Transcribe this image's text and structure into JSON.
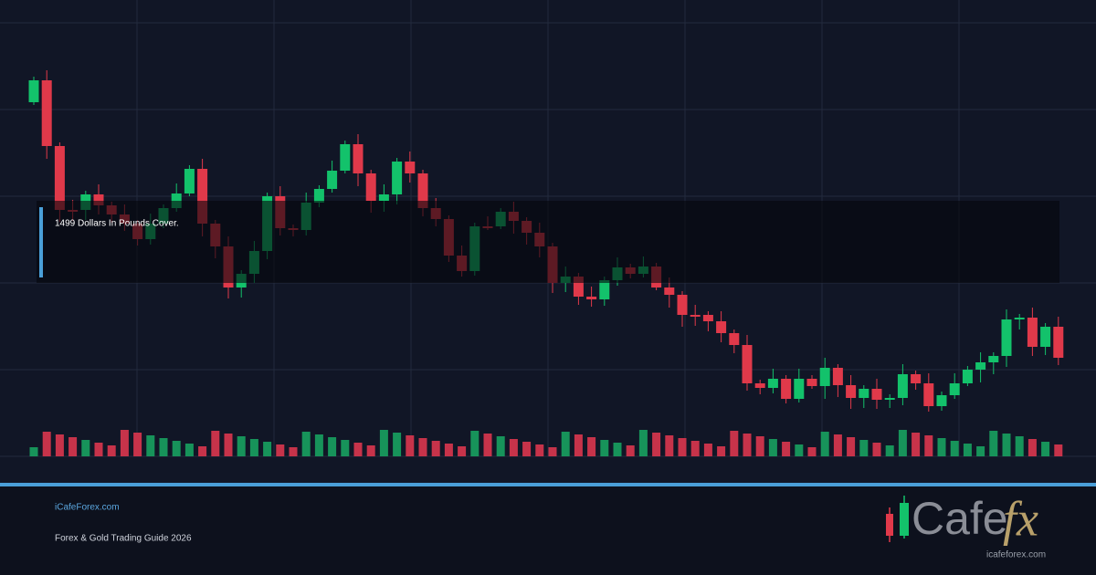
{
  "caption": "1499 Dollars In Pounds Cover.",
  "footer": {
    "site": "iCafeForex.com",
    "tagline": "Forex & Gold Trading Guide 2026"
  },
  "logo": {
    "word": "Cafe",
    "accent": "fx",
    "url": "icafeforex.com"
  }
}
